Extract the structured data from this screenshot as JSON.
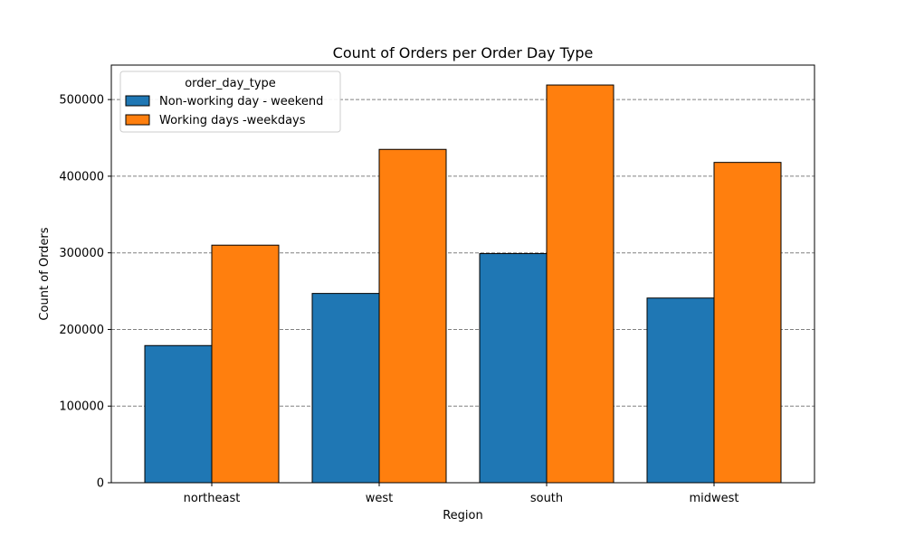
{
  "chart_data": {
    "type": "bar",
    "title": "Count of Orders per Order Day Type",
    "xlabel": "Region",
    "ylabel": "Count of Orders",
    "categories": [
      "northeast",
      "west",
      "south",
      "midwest"
    ],
    "series": [
      {
        "name": "Non-working day - weekend",
        "color": "#1f77b4",
        "values": [
          179000,
          247000,
          299000,
          241000
        ]
      },
      {
        "name": "Working days -weekdays",
        "color": "#ff7f0e",
        "values": [
          310000,
          435000,
          519000,
          418000
        ]
      }
    ],
    "ylim": [
      0,
      545000
    ],
    "yticks": [
      0,
      100000,
      200000,
      300000,
      400000,
      500000
    ],
    "ytick_labels": [
      "0",
      "100000",
      "200000",
      "300000",
      "400000",
      "500000"
    ],
    "grid": "horizontal dashed",
    "legend": {
      "title": "order_day_type",
      "placement": "top-left"
    }
  }
}
